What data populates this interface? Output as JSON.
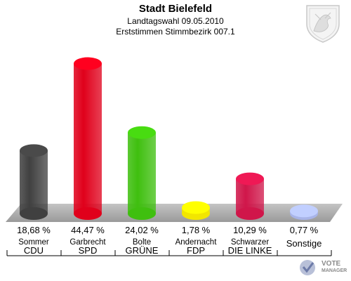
{
  "chart_data": {
    "type": "bar",
    "title": "Stadt Bielefeld",
    "subtitle_1": "Landtagswahl 09.05.2010",
    "subtitle_2": "Erststimmen Stimmbezirk 007.1",
    "categories": [
      "CDU",
      "SPD",
      "GRÜNE",
      "FDP",
      "DIE LINKE",
      "Sonstige"
    ],
    "candidates": [
      "Sommer",
      "Garbrecht",
      "Bolte",
      "Andernacht",
      "Schwarzer",
      ""
    ],
    "values": [
      18.68,
      44.47,
      24.02,
      1.78,
      10.29,
      0.77
    ],
    "value_labels": [
      "18,68 %",
      "44,47 %",
      "24,02 %",
      "1,78 %",
      "10,29 %",
      "0,77 %"
    ],
    "colors": [
      "#404040",
      "#e0001b",
      "#3fbf0f",
      "#f2e600",
      "#d0164a",
      "#a8b4e8"
    ],
    "ylim": [
      0,
      50
    ]
  },
  "logo": {
    "line1": "VOTE",
    "line2": "MANAGER"
  },
  "crest_icon": "coat-of-arms-icon"
}
